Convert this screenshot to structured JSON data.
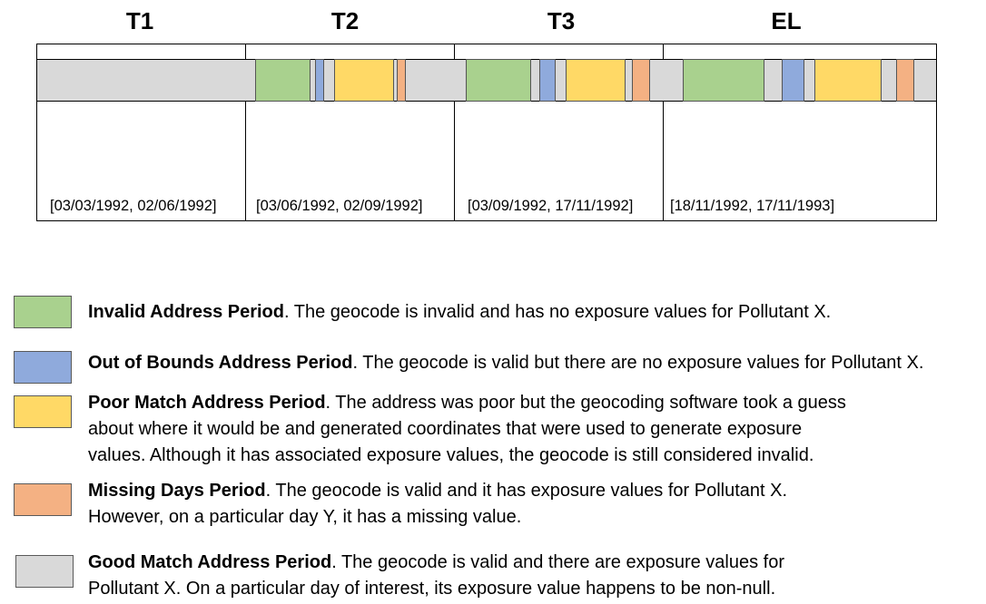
{
  "periods": [
    {
      "label": "T1",
      "range": "[03/03/1992, 02/06/1992]"
    },
    {
      "label": "T2",
      "range": "[03/06/1992, 02/09/1992]"
    },
    {
      "label": "T3",
      "range": "[03/09/1992, 17/11/1992]"
    },
    {
      "label": "EL",
      "range": "[18/11/1992, 17/11/1993]"
    }
  ],
  "colors": {
    "invalid": "#a9d18e",
    "out_of_bounds": "#8faadc",
    "poor_match": "#ffd966",
    "missing_days": "#f4b183",
    "good_match": "#d9d9d9"
  },
  "legend": [
    {
      "key": "invalid",
      "title": "Invalid Address Period",
      "line1": ". The geocode is invalid and has no exposure values for Pollutant X.",
      "line2": "",
      "line3": ""
    },
    {
      "key": "out_of_bounds",
      "title": "Out of Bounds Address Period",
      "line1": ". The geocode is valid but there are no exposure values for Pollutant X.",
      "line2": "",
      "line3": ""
    },
    {
      "key": "poor_match",
      "title": "Poor Match Address Period",
      "line1": ". The address was poor but the geocoding software took a guess",
      "line2": "about where it would be and generated coordinates that were used to generate exposure",
      "line3": "values.  Although it has associated exposure values, the geocode is still considered invalid."
    },
    {
      "key": "missing_days",
      "title": "Missing Days Period",
      "line1": ". The geocode is valid and it has exposure values for Pollutant X.",
      "line2": "However, on a particular day Y, it has a missing value.",
      "line3": ""
    },
    {
      "key": "good_match",
      "title": "Good Match Address Period",
      "line1": ". The geocode is valid and there are exposure values for",
      "line2": "Pollutant X.  On a particular day of interest, its exposure value happens to be non-null.",
      "line3": ""
    }
  ]
}
